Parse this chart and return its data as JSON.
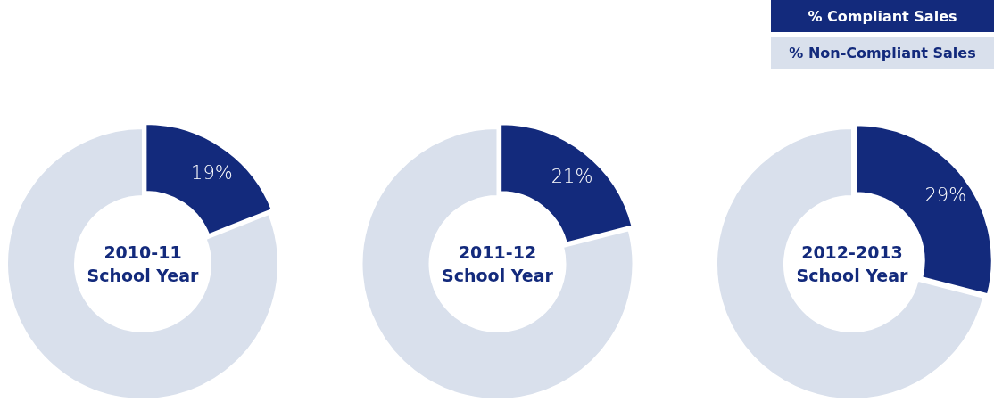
{
  "chart_data": [
    {
      "type": "donut",
      "title": "2010-11 School Year",
      "categories": [
        null,
        null
      ],
      "values": [
        19,
        81
      ],
      "colors": [
        "#132a7c",
        "#d9e0ec"
      ],
      "value_labels": [
        "19%",
        null
      ]
    },
    {
      "type": "donut",
      "title": "2011-12 School Year",
      "categories": [
        null,
        null
      ],
      "values": [
        21,
        79
      ],
      "colors": [
        "#132a7c",
        "#d9e0ec"
      ],
      "value_labels": [
        "21%",
        null
      ]
    },
    {
      "type": "donut",
      "title": "2012-2013 School Year",
      "categories": [
        "% Compliant Sales",
        "% Non-Compliant Sales"
      ],
      "values": [
        29,
        71
      ],
      "colors": [
        "#132a7c",
        "#d9e0ec"
      ],
      "value_labels": [
        "29%",
        null
      ]
    }
  ]
}
